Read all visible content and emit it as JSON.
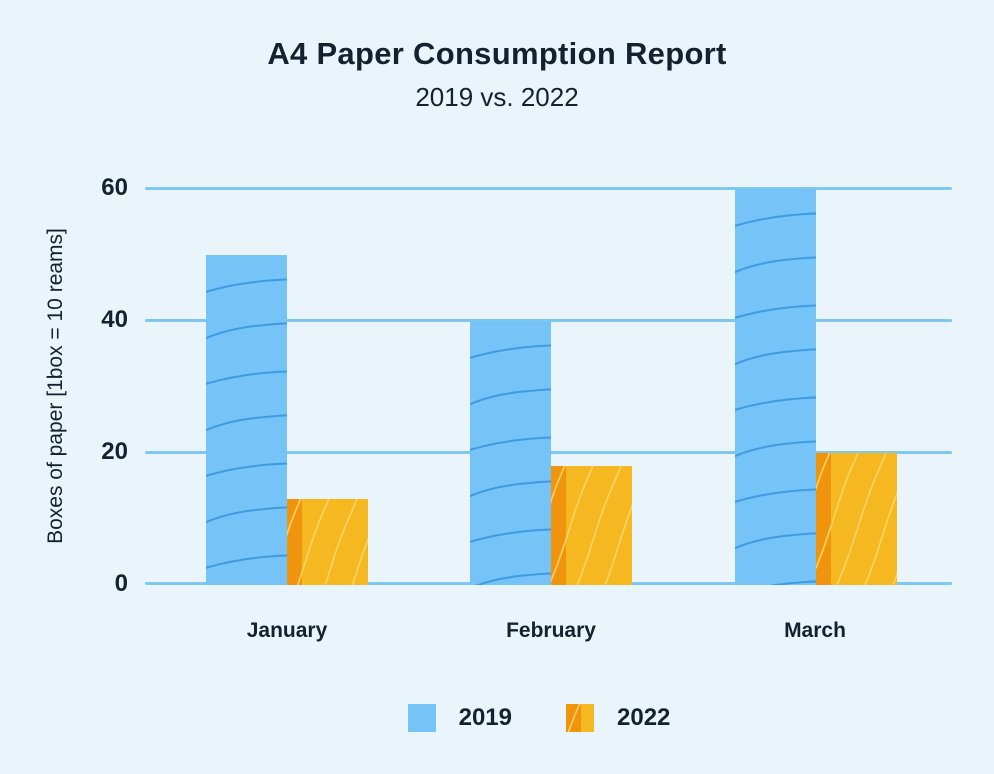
{
  "chart": {
    "title": "A4 Paper Consumption Report",
    "subtitle": "2019 vs. 2022",
    "y_axis_label": "Boxes of paper [1box = 10 reams]"
  },
  "chart_data": {
    "type": "bar",
    "title": "A4 Paper Consumption Report",
    "subtitle": "2019 vs. 2022",
    "categories": [
      "January",
      "February",
      "March"
    ],
    "series": [
      {
        "name": "2019",
        "values": [
          50,
          40,
          60
        ],
        "color": "#75c3f7",
        "pattern": "wavy-lines",
        "pattern_color": "#3f9ae6"
      },
      {
        "name": "2022",
        "values": [
          13,
          18,
          20
        ],
        "color": "#f6b821",
        "pattern": "diagonal-hatch",
        "pattern_color": "#fbd567",
        "edge_stripe_color": "#f0930d"
      }
    ],
    "xlabel": "",
    "ylabel": "Boxes of paper [1box = 10 reams]",
    "ylim": [
      0,
      60
    ],
    "yticks": [
      0,
      20,
      40,
      60
    ],
    "grid": "horizontal",
    "grid_color": "#7ec7f0",
    "background_color": "#e9f4fb",
    "legend_position": "bottom"
  }
}
